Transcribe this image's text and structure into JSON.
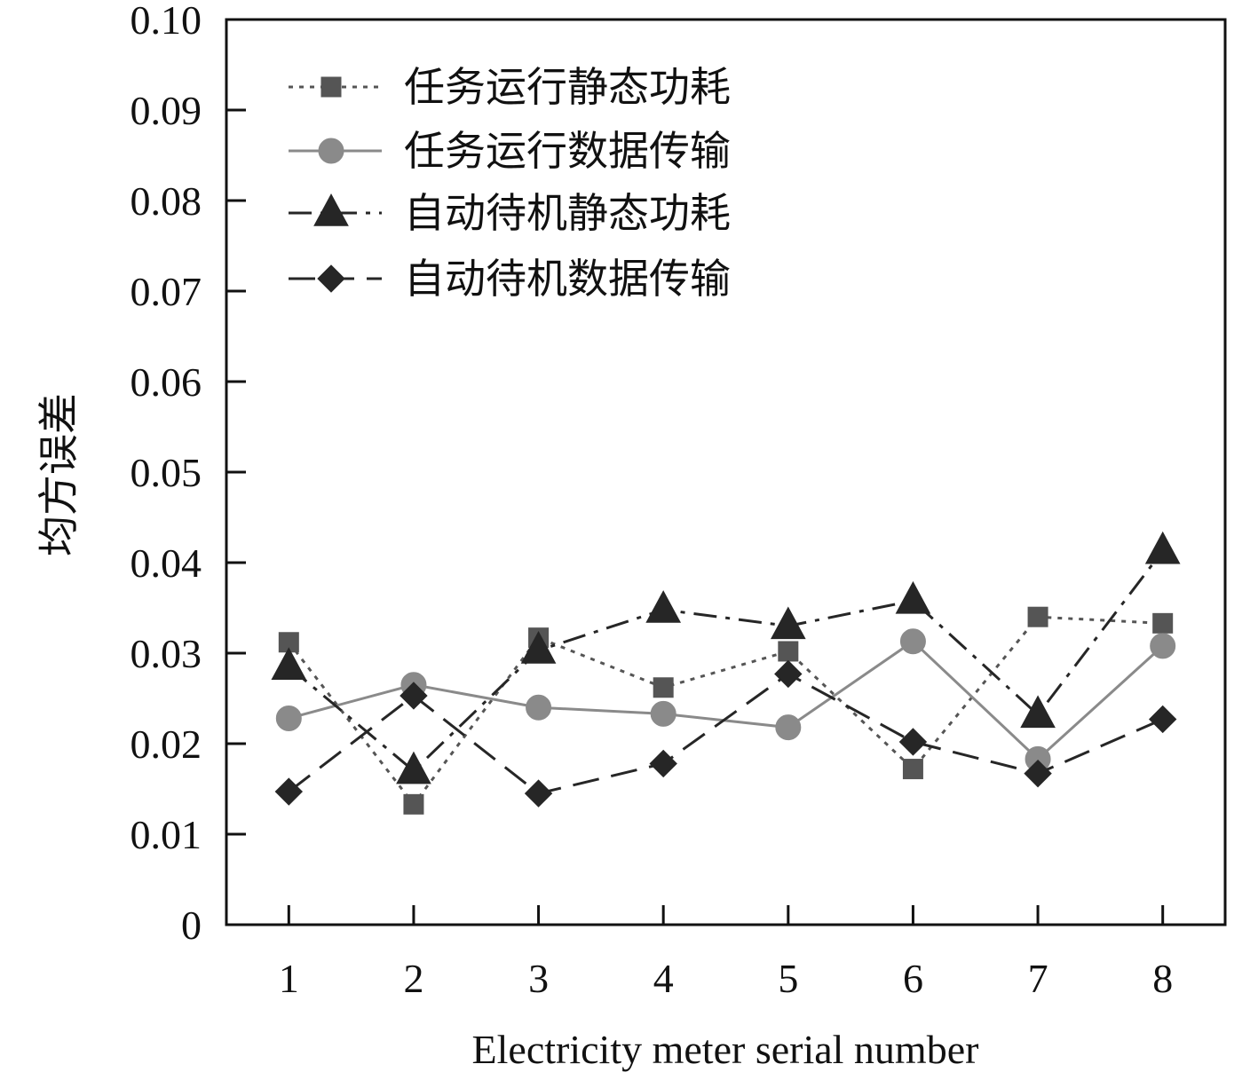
{
  "chart_data": {
    "type": "line",
    "title": "",
    "xlabel": "Electricity meter serial number",
    "ylabel": "均方误差",
    "x": [
      1,
      2,
      3,
      4,
      5,
      6,
      7,
      8
    ],
    "xticks": [
      "1",
      "2",
      "3",
      "4",
      "5",
      "6",
      "7",
      "8"
    ],
    "xlim": [
      0.5,
      8.5
    ],
    "ylim": [
      0,
      0.1
    ],
    "yticks": [
      "0",
      "0.01",
      "0.02",
      "0.03",
      "0.04",
      "0.05",
      "0.06",
      "0.07",
      "0.08",
      "0.09",
      "0.10"
    ],
    "grid": false,
    "legend_position": "top-left",
    "series": [
      {
        "name": "任务运行静态功耗",
        "values": [
          0.0312,
          0.0133,
          0.0317,
          0.0262,
          0.0302,
          0.0172,
          0.034,
          0.0333
        ],
        "marker": "square",
        "line_style": "dotted",
        "color": "#555555"
      },
      {
        "name": "任务运行数据传输",
        "values": [
          0.0228,
          0.0265,
          0.024,
          0.0233,
          0.0218,
          0.0313,
          0.0183,
          0.0308
        ],
        "marker": "circle",
        "line_style": "solid",
        "color": "#8a8a8a"
      },
      {
        "name": "自动待机静态功耗",
        "values": [
          0.0285,
          0.017,
          0.0303,
          0.0348,
          0.033,
          0.0358,
          0.0232,
          0.0413
        ],
        "marker": "triangle",
        "line_style": "dash-dot",
        "color": "#262626"
      },
      {
        "name": "自动待机数据传输",
        "values": [
          0.0147,
          0.0253,
          0.0145,
          0.0178,
          0.0277,
          0.0202,
          0.0167,
          0.0227
        ],
        "marker": "diamond",
        "line_style": "dashed",
        "color": "#262626"
      }
    ]
  }
}
